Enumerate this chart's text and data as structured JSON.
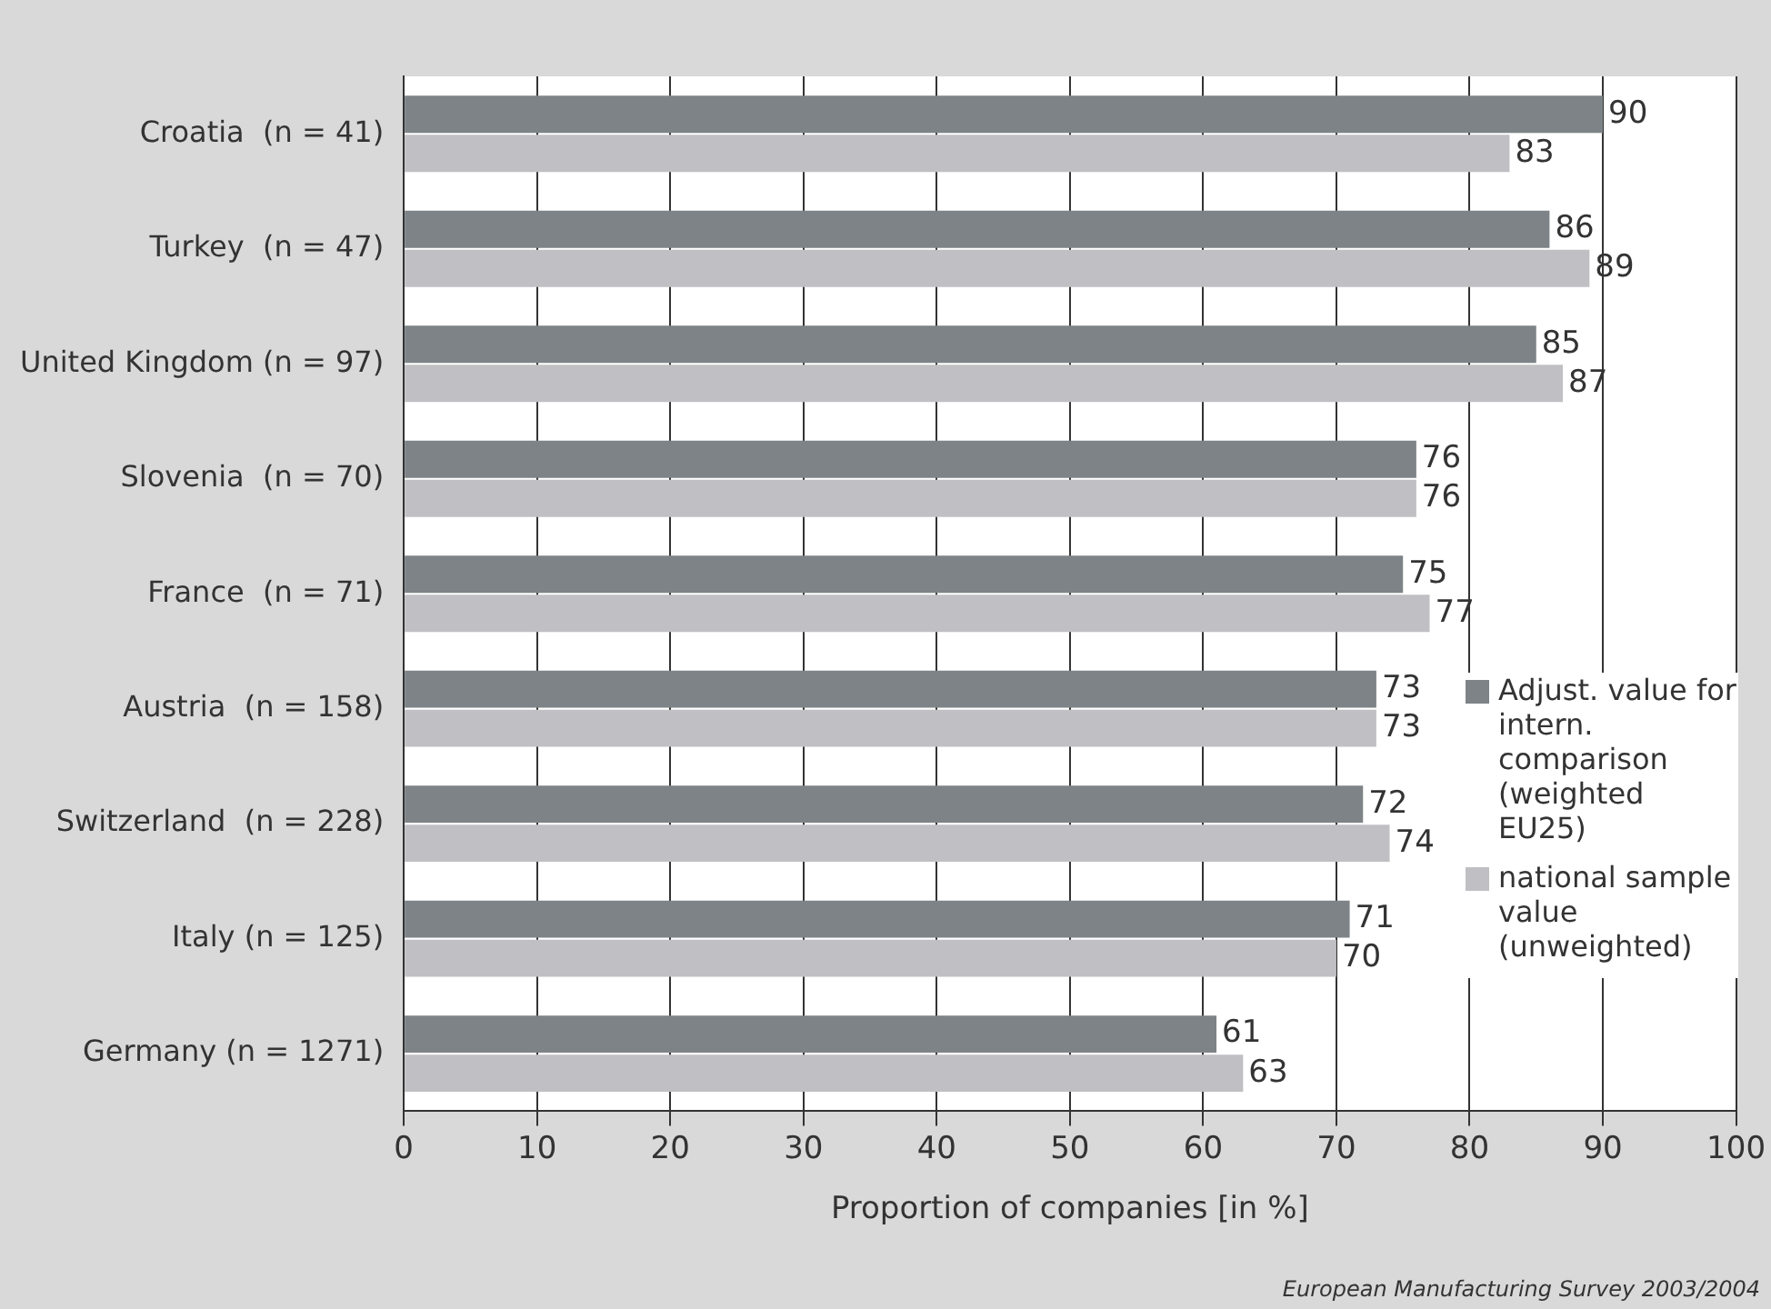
{
  "chart_data": {
    "type": "bar",
    "orientation": "horizontal",
    "xlabel": "Proportion of companies [in %]",
    "categories": [
      "Croatia  (n = 41)",
      "Turkey  (n = 47)",
      "United Kingdom (n = 97)",
      "Slovenia  (n = 70)",
      "France  (n = 71)",
      "Austria  (n = 158)",
      "Switzerland  (n = 228)",
      "Italy (n = 125)",
      "Germany (n = 1271)"
    ],
    "series": [
      {
        "name": "Adjust. value for intern. comparison (weighted EU25)",
        "color": "#7d8386",
        "values": [
          90,
          86,
          85,
          76,
          75,
          73,
          72,
          71,
          61
        ]
      },
      {
        "name": "national sample value (unweighted)",
        "color": "#c0c0c4",
        "values": [
          83,
          89,
          87,
          76,
          77,
          73,
          74,
          70,
          63
        ]
      }
    ],
    "xlim": [
      0,
      100
    ],
    "xticks": [
      0,
      10,
      20,
      30,
      40,
      50,
      60,
      70,
      80,
      90,
      100
    ],
    "grid": "x",
    "legend": "right",
    "data_labels": true,
    "annotations": [
      "European Manufacturing Survey 2003/2004"
    ]
  }
}
